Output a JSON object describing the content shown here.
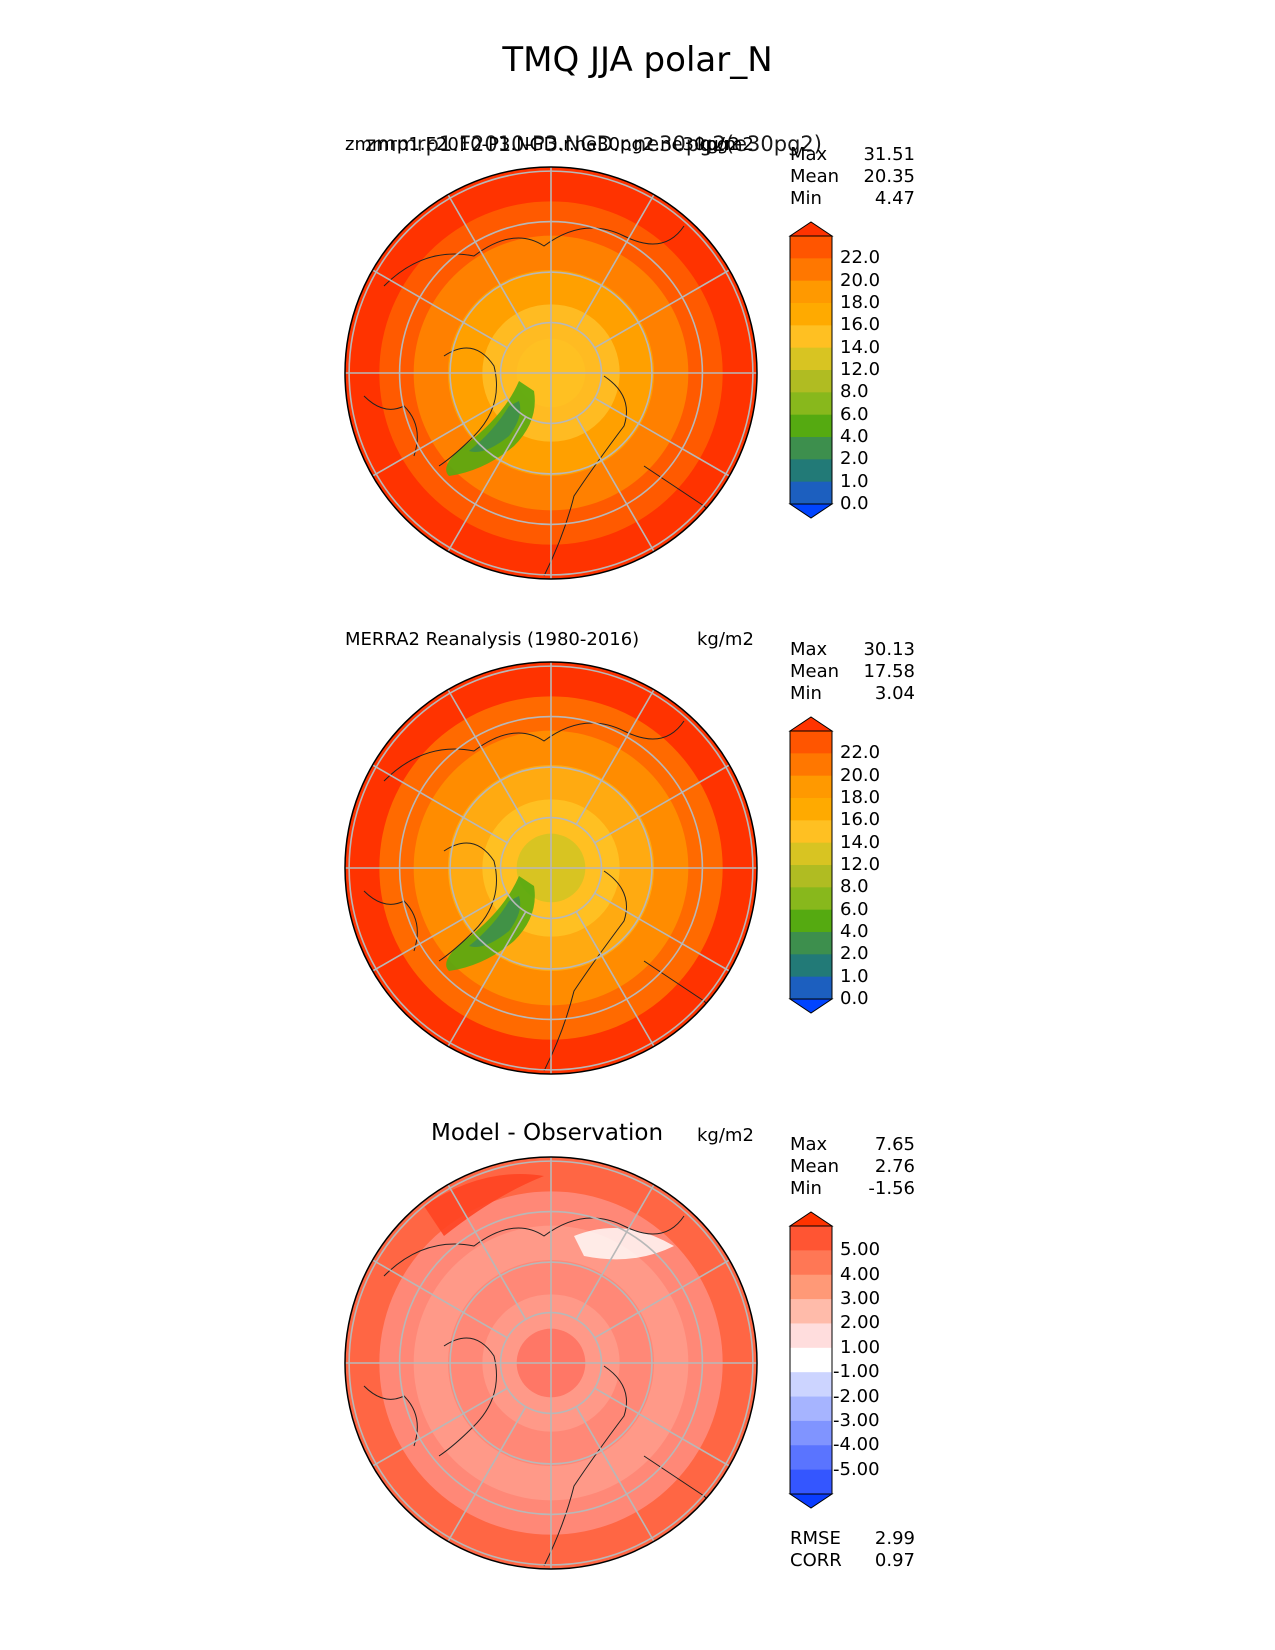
{
  "figure": {
    "title": "TMQ JJA polar_N"
  },
  "panels": [
    {
      "id": "model",
      "title_left": "zmmrp1.F2010-P3.NGD.r.ne30pg2.ne30pg2",
      "title_overprint": "zmmrp1.F2010-P3.NGD.r.ne30pg2(e30pg2)",
      "title_center": "",
      "units": "kg/m2",
      "stats": [
        {
          "label": "Max",
          "value": "31.51"
        },
        {
          "label": "Mean",
          "value": "20.35"
        },
        {
          "label": "Min",
          "value": "4.47"
        }
      ],
      "colorbar_ticks": [
        "22.0",
        "20.0",
        "18.0",
        "16.0",
        "14.0",
        "12.0",
        "8.0",
        "6.0",
        "4.0",
        "2.0",
        "1.0",
        "0.0"
      ],
      "colorbar_colors": [
        "#ff3300",
        "#ff5500",
        "#ff7700",
        "#ff9900",
        "#ffaa00",
        "#ffc022",
        "#d8c422",
        "#b0bc22",
        "#88b81c",
        "#55aa11",
        "#3d8f4d",
        "#227a77",
        "#1c5fbf",
        "#0044ff"
      ],
      "map_rings": [
        "#ff3300",
        "#ff5a00",
        "#ff8000",
        "#ffa000",
        "#ffbb22",
        "#ffc022"
      ]
    },
    {
      "id": "obs",
      "title_left": "MERRA2 Reanalysis (1980-2016)",
      "title_center": "",
      "units": "kg/m2",
      "stats": [
        {
          "label": "Max",
          "value": "30.13"
        },
        {
          "label": "Mean",
          "value": "17.58"
        },
        {
          "label": "Min",
          "value": "3.04"
        }
      ],
      "colorbar_ticks": [
        "22.0",
        "20.0",
        "18.0",
        "16.0",
        "14.0",
        "12.0",
        "8.0",
        "6.0",
        "4.0",
        "2.0",
        "1.0",
        "0.0"
      ],
      "colorbar_colors": [
        "#ff3300",
        "#ff5500",
        "#ff7700",
        "#ff9900",
        "#ffaa00",
        "#ffc022",
        "#d8c422",
        "#b0bc22",
        "#88b81c",
        "#55aa11",
        "#3d8f4d",
        "#227a77",
        "#1c5fbf",
        "#0044ff"
      ],
      "map_rings": [
        "#ff3300",
        "#ff6a00",
        "#ff8c00",
        "#ffaa11",
        "#ffc022",
        "#d8c422"
      ]
    },
    {
      "id": "diff",
      "title_left": "",
      "title_center": "Model - Observation",
      "units": "kg/m2",
      "stats": [
        {
          "label": "Max",
          "value": "7.65"
        },
        {
          "label": "Mean",
          "value": "2.76"
        },
        {
          "label": "Min",
          "value": "-1.56"
        }
      ],
      "colorbar_ticks": [
        "5.00",
        "4.00",
        "3.00",
        "2.00",
        "1.00",
        "-1.00",
        "-2.00",
        "-3.00",
        "-4.00",
        "-5.00"
      ],
      "colorbar_colors": [
        "#ff3300",
        "#ff5533",
        "#ff7755",
        "#ff9977",
        "#ffbbaa",
        "#ffdddd",
        "#ffffff",
        "#ccd4ff",
        "#a6b4ff",
        "#8094ff",
        "#5a74ff",
        "#3456ff",
        "#0a3cff"
      ],
      "map_rings": [
        "#ff6644",
        "#ff8877",
        "#ff9988",
        "#ff8877",
        "#ff9988",
        "#ff7766"
      ],
      "extra_stats": [
        {
          "label": "RMSE",
          "value": "2.99"
        },
        {
          "label": "CORR",
          "value": "0.97"
        }
      ]
    }
  ],
  "chart_data": [
    {
      "type": "heatmap",
      "title": "zmmrp1.F2010-P3.NGD.r.ne30pg2.ne30pg2",
      "variable": "TMQ",
      "season": "JJA",
      "region": "polar_N",
      "units": "kg/m2",
      "max": 31.51,
      "mean": 20.35,
      "min": 4.47,
      "levels": [
        0.0,
        1.0,
        2.0,
        4.0,
        6.0,
        8.0,
        12.0,
        14.0,
        16.0,
        18.0,
        20.0,
        22.0
      ]
    },
    {
      "type": "heatmap",
      "title": "MERRA2 Reanalysis (1980-2016)",
      "units": "kg/m2",
      "max": 30.13,
      "mean": 17.58,
      "min": 3.04,
      "levels": [
        0.0,
        1.0,
        2.0,
        4.0,
        6.0,
        8.0,
        12.0,
        14.0,
        16.0,
        18.0,
        20.0,
        22.0
      ]
    },
    {
      "type": "heatmap",
      "title": "Model - Observation",
      "units": "kg/m2",
      "max": 7.65,
      "mean": 2.76,
      "min": -1.56,
      "rmse": 2.99,
      "corr": 0.97,
      "levels": [
        -5.0,
        -4.0,
        -3.0,
        -2.0,
        -1.0,
        1.0,
        2.0,
        3.0,
        4.0,
        5.0
      ]
    }
  ]
}
